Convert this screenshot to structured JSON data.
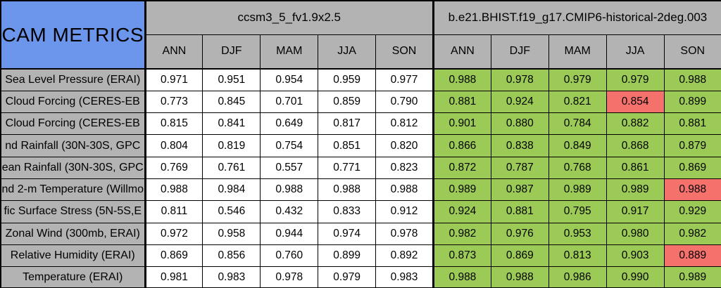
{
  "colors": {
    "header_blue": "#6c95ec",
    "header_gray": "#b3b3b3",
    "good_green": "#9bcb56",
    "flag_red": "#f4716c",
    "cell_white": "#ffffff",
    "border_black": "#000000"
  },
  "chart_data": {
    "type": "table",
    "title": "CAM METRICS",
    "column_groups": [
      "ccsm3_5_fv1.9x2.5",
      "b.e21.BHIST.f19_g17.CMIP6-historical-2deg.003"
    ],
    "seasons": [
      "ANN",
      "DJF",
      "MAM",
      "JJA",
      "SON"
    ],
    "legend_note_colors": {
      "model1_cells": "white",
      "model2_cells_default": "green",
      "model2_cells_flagged": "red"
    },
    "rows": [
      {
        "label": "Sea Level Pressure (ERAI)",
        "m1": [
          "0.971",
          "0.951",
          "0.954",
          "0.959",
          "0.977"
        ],
        "m2": [
          "0.988",
          "0.978",
          "0.979",
          "0.979",
          "0.988"
        ],
        "m2_red": []
      },
      {
        "label": "Cloud Forcing (CERES-EB",
        "m1": [
          "0.773",
          "0.845",
          "0.701",
          "0.859",
          "0.790"
        ],
        "m2": [
          "0.881",
          "0.924",
          "0.821",
          "0.854",
          "0.899"
        ],
        "m2_red": [
          3
        ]
      },
      {
        "label": "Cloud Forcing (CERES-EB",
        "m1": [
          "0.815",
          "0.841",
          "0.649",
          "0.817",
          "0.812"
        ],
        "m2": [
          "0.901",
          "0.880",
          "0.784",
          "0.882",
          "0.881"
        ],
        "m2_red": []
      },
      {
        "label": "nd Rainfall (30N-30S, GPC",
        "m1": [
          "0.804",
          "0.819",
          "0.754",
          "0.851",
          "0.820"
        ],
        "m2": [
          "0.866",
          "0.838",
          "0.849",
          "0.868",
          "0.879"
        ],
        "m2_red": []
      },
      {
        "label": "ean Rainfall (30N-30S, GPC",
        "m1": [
          "0.769",
          "0.761",
          "0.557",
          "0.771",
          "0.823"
        ],
        "m2": [
          "0.872",
          "0.787",
          "0.768",
          "0.861",
          "0.869"
        ],
        "m2_red": []
      },
      {
        "label": "nd 2-m Temperature (Willmo",
        "m1": [
          "0.988",
          "0.984",
          "0.988",
          "0.988",
          "0.988"
        ],
        "m2": [
          "0.989",
          "0.987",
          "0.989",
          "0.989",
          "0.988"
        ],
        "m2_red": [
          4
        ]
      },
      {
        "label": "fic Surface Stress (5N-5S,E",
        "m1": [
          "0.811",
          "0.546",
          "0.432",
          "0.833",
          "0.912"
        ],
        "m2": [
          "0.924",
          "0.881",
          "0.795",
          "0.917",
          "0.929"
        ],
        "m2_red": []
      },
      {
        "label": "Zonal Wind (300mb, ERAI)",
        "m1": [
          "0.972",
          "0.958",
          "0.944",
          "0.974",
          "0.978"
        ],
        "m2": [
          "0.982",
          "0.976",
          "0.953",
          "0.980",
          "0.982"
        ],
        "m2_red": []
      },
      {
        "label": "Relative Humidity (ERAI)",
        "m1": [
          "0.869",
          "0.856",
          "0.760",
          "0.899",
          "0.892"
        ],
        "m2": [
          "0.873",
          "0.869",
          "0.813",
          "0.903",
          "0.889"
        ],
        "m2_red": [
          4
        ]
      },
      {
        "label": "Temperature (ERAI)",
        "m1": [
          "0.981",
          "0.983",
          "0.978",
          "0.979",
          "0.983"
        ],
        "m2": [
          "0.988",
          "0.988",
          "0.986",
          "0.990",
          "0.989"
        ],
        "m2_red": []
      }
    ]
  }
}
